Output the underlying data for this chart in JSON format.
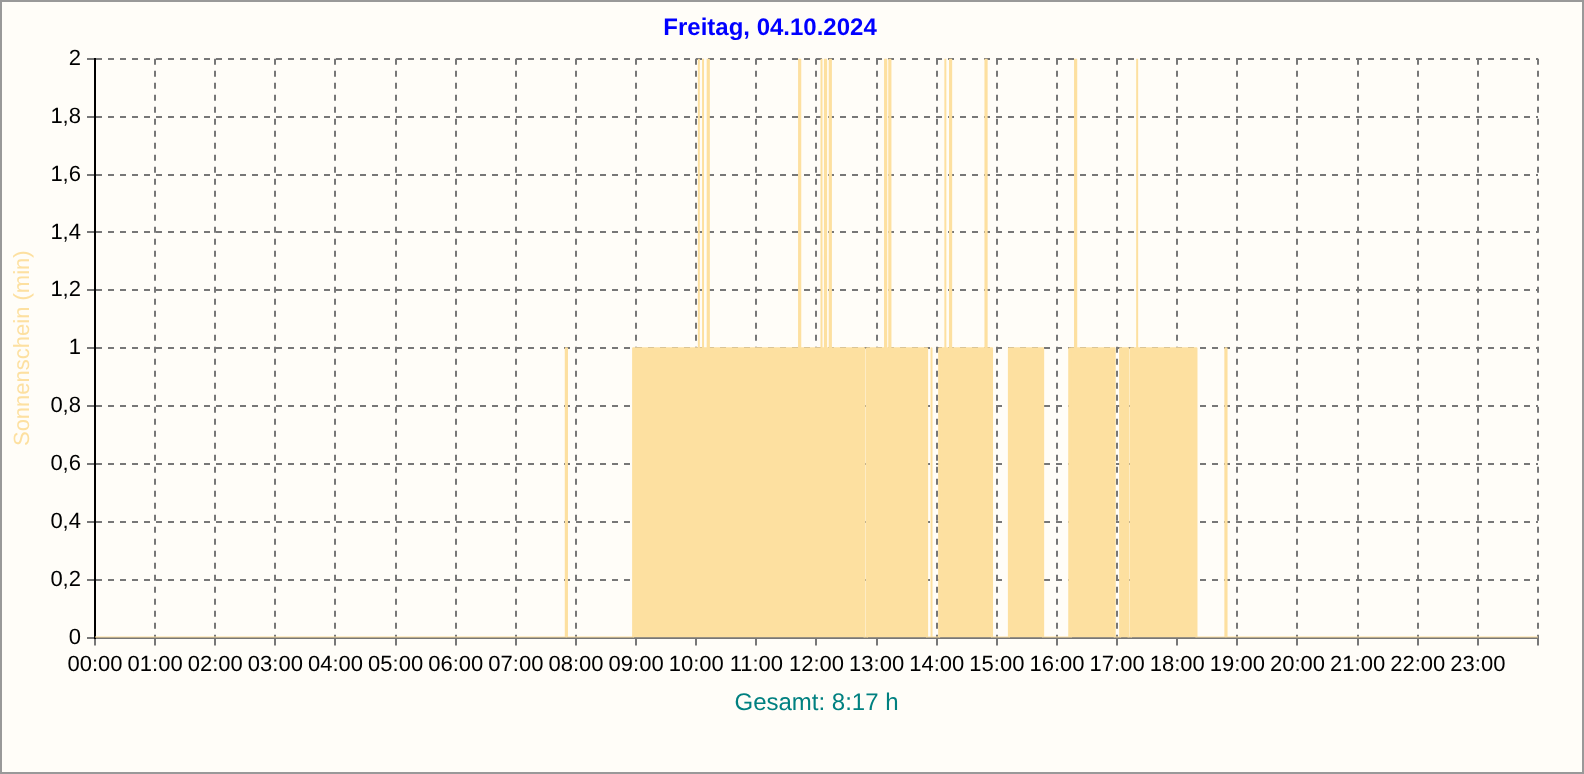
{
  "chart_data": {
    "type": "area",
    "title": "Freitag, 04.10.2024",
    "ylabel": "Sonnenschein (min)",
    "annotations": [
      "Gesamt: 8:17 h"
    ],
    "xlim": [
      0,
      24
    ],
    "xticks": [
      {
        "value": 0,
        "label": "00:00"
      },
      {
        "value": 1,
        "label": "01:00"
      },
      {
        "value": 2,
        "label": "02:00"
      },
      {
        "value": 3,
        "label": "03:00"
      },
      {
        "value": 4,
        "label": "04:00"
      },
      {
        "value": 5,
        "label": "05:00"
      },
      {
        "value": 6,
        "label": "06:00"
      },
      {
        "value": 7,
        "label": "07:00"
      },
      {
        "value": 8,
        "label": "08:00"
      },
      {
        "value": 9,
        "label": "09:00"
      },
      {
        "value": 10,
        "label": "10:00"
      },
      {
        "value": 11,
        "label": "11:00"
      },
      {
        "value": 12,
        "label": "12:00"
      },
      {
        "value": 13,
        "label": "13:00"
      },
      {
        "value": 14,
        "label": "14:00"
      },
      {
        "value": 15,
        "label": "15:00"
      },
      {
        "value": 16,
        "label": "16:00"
      },
      {
        "value": 17,
        "label": "17:00"
      },
      {
        "value": 18,
        "label": "18:00"
      },
      {
        "value": 19,
        "label": "19:00"
      },
      {
        "value": 20,
        "label": "20:00"
      },
      {
        "value": 21,
        "label": "21:00"
      },
      {
        "value": 22,
        "label": "22:00"
      },
      {
        "value": 23,
        "label": "23:00"
      },
      {
        "value": 24,
        "label": null
      }
    ],
    "ylim": [
      0,
      2
    ],
    "yticks": [
      0,
      {
        "value": 0.2,
        "label": "0,2"
      },
      {
        "value": 0.4,
        "label": "0,4"
      },
      {
        "value": 0.6,
        "label": "0,6"
      },
      {
        "value": 0.8,
        "label": "0,8"
      },
      1,
      {
        "value": 1.2,
        "label": "1,2"
      },
      {
        "value": 1.4,
        "label": "1,4"
      },
      {
        "value": 1.6,
        "label": "1,6"
      },
      {
        "value": 1.8,
        "label": "1,8"
      },
      2
    ],
    "grid": true,
    "x": [
      0,
      7.83,
      7.83,
      7.85,
      7.85,
      8.95,
      8.95,
      10.03,
      10.03,
      10.05,
      10.05,
      10.1,
      10.1,
      10.12,
      10.12,
      10.19,
      10.19,
      10.21,
      10.21,
      11.71,
      11.71,
      11.73,
      11.73,
      12.07,
      12.07,
      12.09,
      12.09,
      12.14,
      12.14,
      12.16,
      12.16,
      12.22,
      12.22,
      12.24,
      12.24,
      12.8,
      12.8,
      12.84,
      12.84,
      13.14,
      13.14,
      13.16,
      13.16,
      13.21,
      13.21,
      13.23,
      13.23,
      13.84,
      13.84,
      13.9,
      13.9,
      13.92,
      13.92,
      14.04,
      14.04,
      14.13,
      14.13,
      14.15,
      14.15,
      14.22,
      14.22,
      14.24,
      14.24,
      14.81,
      14.81,
      14.83,
      14.83,
      14.92,
      14.92,
      15.2,
      15.2,
      15.77,
      15.77,
      16.19,
      16.19,
      16.21,
      16.21,
      16.23,
      16.23,
      16.3,
      16.3,
      16.32,
      16.32,
      16.96,
      16.96,
      17.05,
      17.05,
      17.19,
      17.19,
      17.23,
      17.23,
      17.32,
      17.32,
      17.34,
      17.34,
      18.32,
      18.32,
      18.8,
      18.8,
      18.82,
      18.82,
      24
    ],
    "series": [
      {
        "color": "#fde0a0",
        "values": [
          0,
          0,
          1,
          1,
          0,
          0,
          1,
          1,
          2,
          2,
          1,
          1,
          2,
          2,
          1,
          1,
          2,
          2,
          1,
          1,
          2,
          2,
          1,
          1,
          2,
          2,
          1,
          1,
          2,
          2,
          1,
          1,
          2,
          2,
          1,
          1,
          0,
          0,
          1,
          1,
          2,
          2,
          1,
          1,
          2,
          2,
          1,
          1,
          0,
          0,
          1,
          1,
          0,
          0,
          1,
          1,
          2,
          2,
          1,
          1,
          2,
          2,
          1,
          1,
          2,
          2,
          1,
          1,
          0,
          0,
          1,
          1,
          0,
          0,
          1,
          1,
          0,
          0,
          1,
          1,
          2,
          2,
          1,
          1,
          0,
          0,
          1,
          1,
          0,
          0,
          1,
          1,
          2,
          2,
          1,
          1,
          0,
          0,
          1,
          1,
          0,
          0
        ]
      }
    ]
  }
}
